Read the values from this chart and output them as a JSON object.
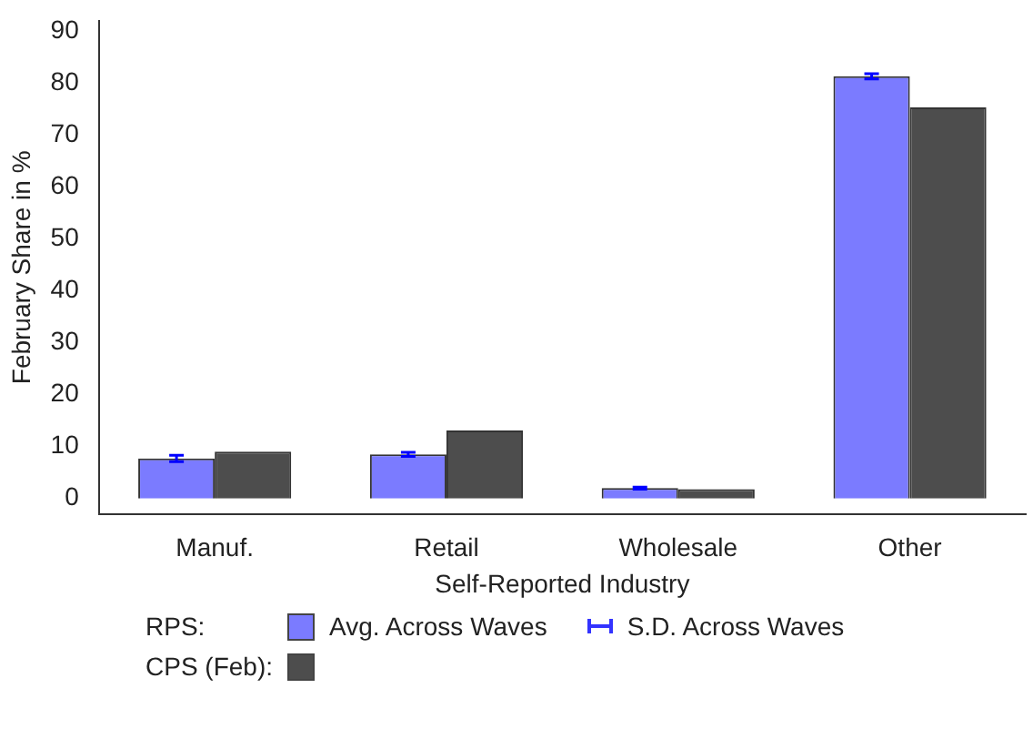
{
  "chart_data": {
    "type": "bar",
    "xlabel": "Self-Reported Industry",
    "ylabel": "February Share in %",
    "categories": [
      "Manuf.",
      "Retail",
      "Wholesale",
      "Other"
    ],
    "series": [
      {
        "name": "Avg. Across Waves",
        "color": "#7b7bff",
        "values": [
          7.7,
          8.5,
          2.0,
          81.3
        ],
        "errors": [
          0.6,
          0.4,
          0.2,
          0.5
        ]
      },
      {
        "name": "CPS (Feb):",
        "color": "#4d4d4d",
        "values": [
          9.0,
          13.1,
          1.8,
          75.3
        ]
      }
    ],
    "ylim": [
      -3,
      92
    ],
    "yticks": [
      0,
      10,
      20,
      30,
      40,
      50,
      60,
      70,
      80,
      90
    ],
    "grid": false,
    "legend": "bottom",
    "annotations": [
      "RPS:",
      "S.D. Across Waves"
    ]
  }
}
